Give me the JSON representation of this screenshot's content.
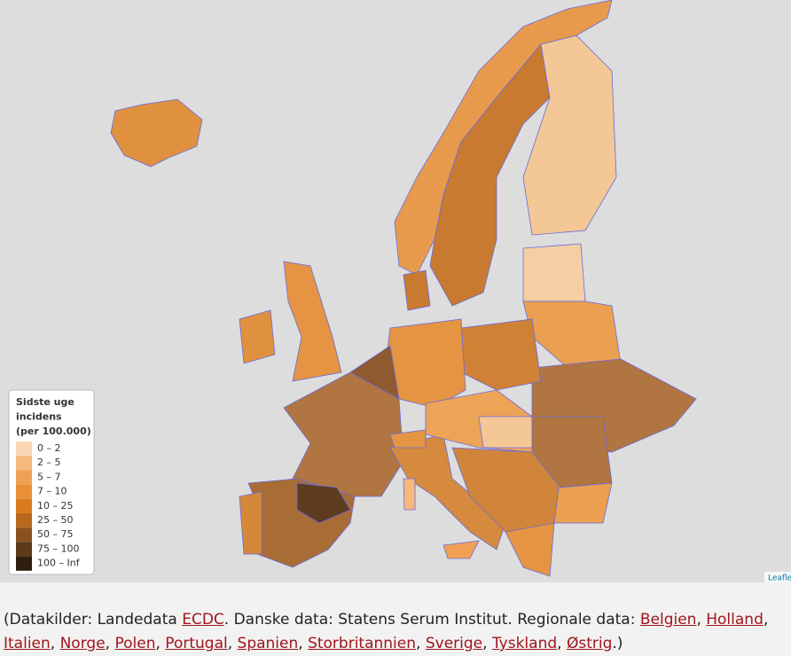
{
  "legend": {
    "title_lines": [
      "Sidste uge",
      "incidens",
      "(per 100.000)"
    ],
    "classes": [
      {
        "label": "0 – 2",
        "color": "#f9d6b4"
      },
      {
        "label": "2 – 5",
        "color": "#f5b97c"
      },
      {
        "label": "5 – 7",
        "color": "#f0a055"
      },
      {
        "label": "7 – 10",
        "color": "#e98f36"
      },
      {
        "label": "10 – 25",
        "color": "#d97b1f"
      },
      {
        "label": "25 – 50",
        "color": "#b8691f"
      },
      {
        "label": "50 – 75",
        "color": "#8a5220"
      },
      {
        "label": "75 – 100",
        "color": "#5c3a1a"
      },
      {
        "label": "100 – Inf",
        "color": "#2e1e10"
      }
    ]
  },
  "attribution": "Leaflet",
  "caption": {
    "parts": [
      {
        "text": "(Datakilder: Landedata "
      },
      {
        "text": "ECDC",
        "link": true
      },
      {
        "text": ". Danske data: Statens Serum Institut. Regionale data: "
      },
      {
        "text": "Belgien",
        "link": true
      },
      {
        "text": ", "
      },
      {
        "text": "Holland",
        "link": true
      },
      {
        "text": ", "
      },
      {
        "text": "Italien",
        "link": true
      },
      {
        "text": ", "
      },
      {
        "text": "Norge",
        "link": true
      },
      {
        "text": ", "
      },
      {
        "text": "Polen",
        "link": true
      },
      {
        "text": ", "
      },
      {
        "text": "Portugal",
        "link": true
      },
      {
        "text": ", "
      },
      {
        "text": "Spanien",
        "link": true
      },
      {
        "text": ", "
      },
      {
        "text": "Storbritannien",
        "link": true
      },
      {
        "text": ", "
      },
      {
        "text": "Sverige",
        "link": true
      },
      {
        "text": ", "
      },
      {
        "text": "Tyskland",
        "link": true
      },
      {
        "text": ", "
      },
      {
        "text": "Østrig",
        "link": true
      },
      {
        "text": ".)"
      }
    ]
  }
}
